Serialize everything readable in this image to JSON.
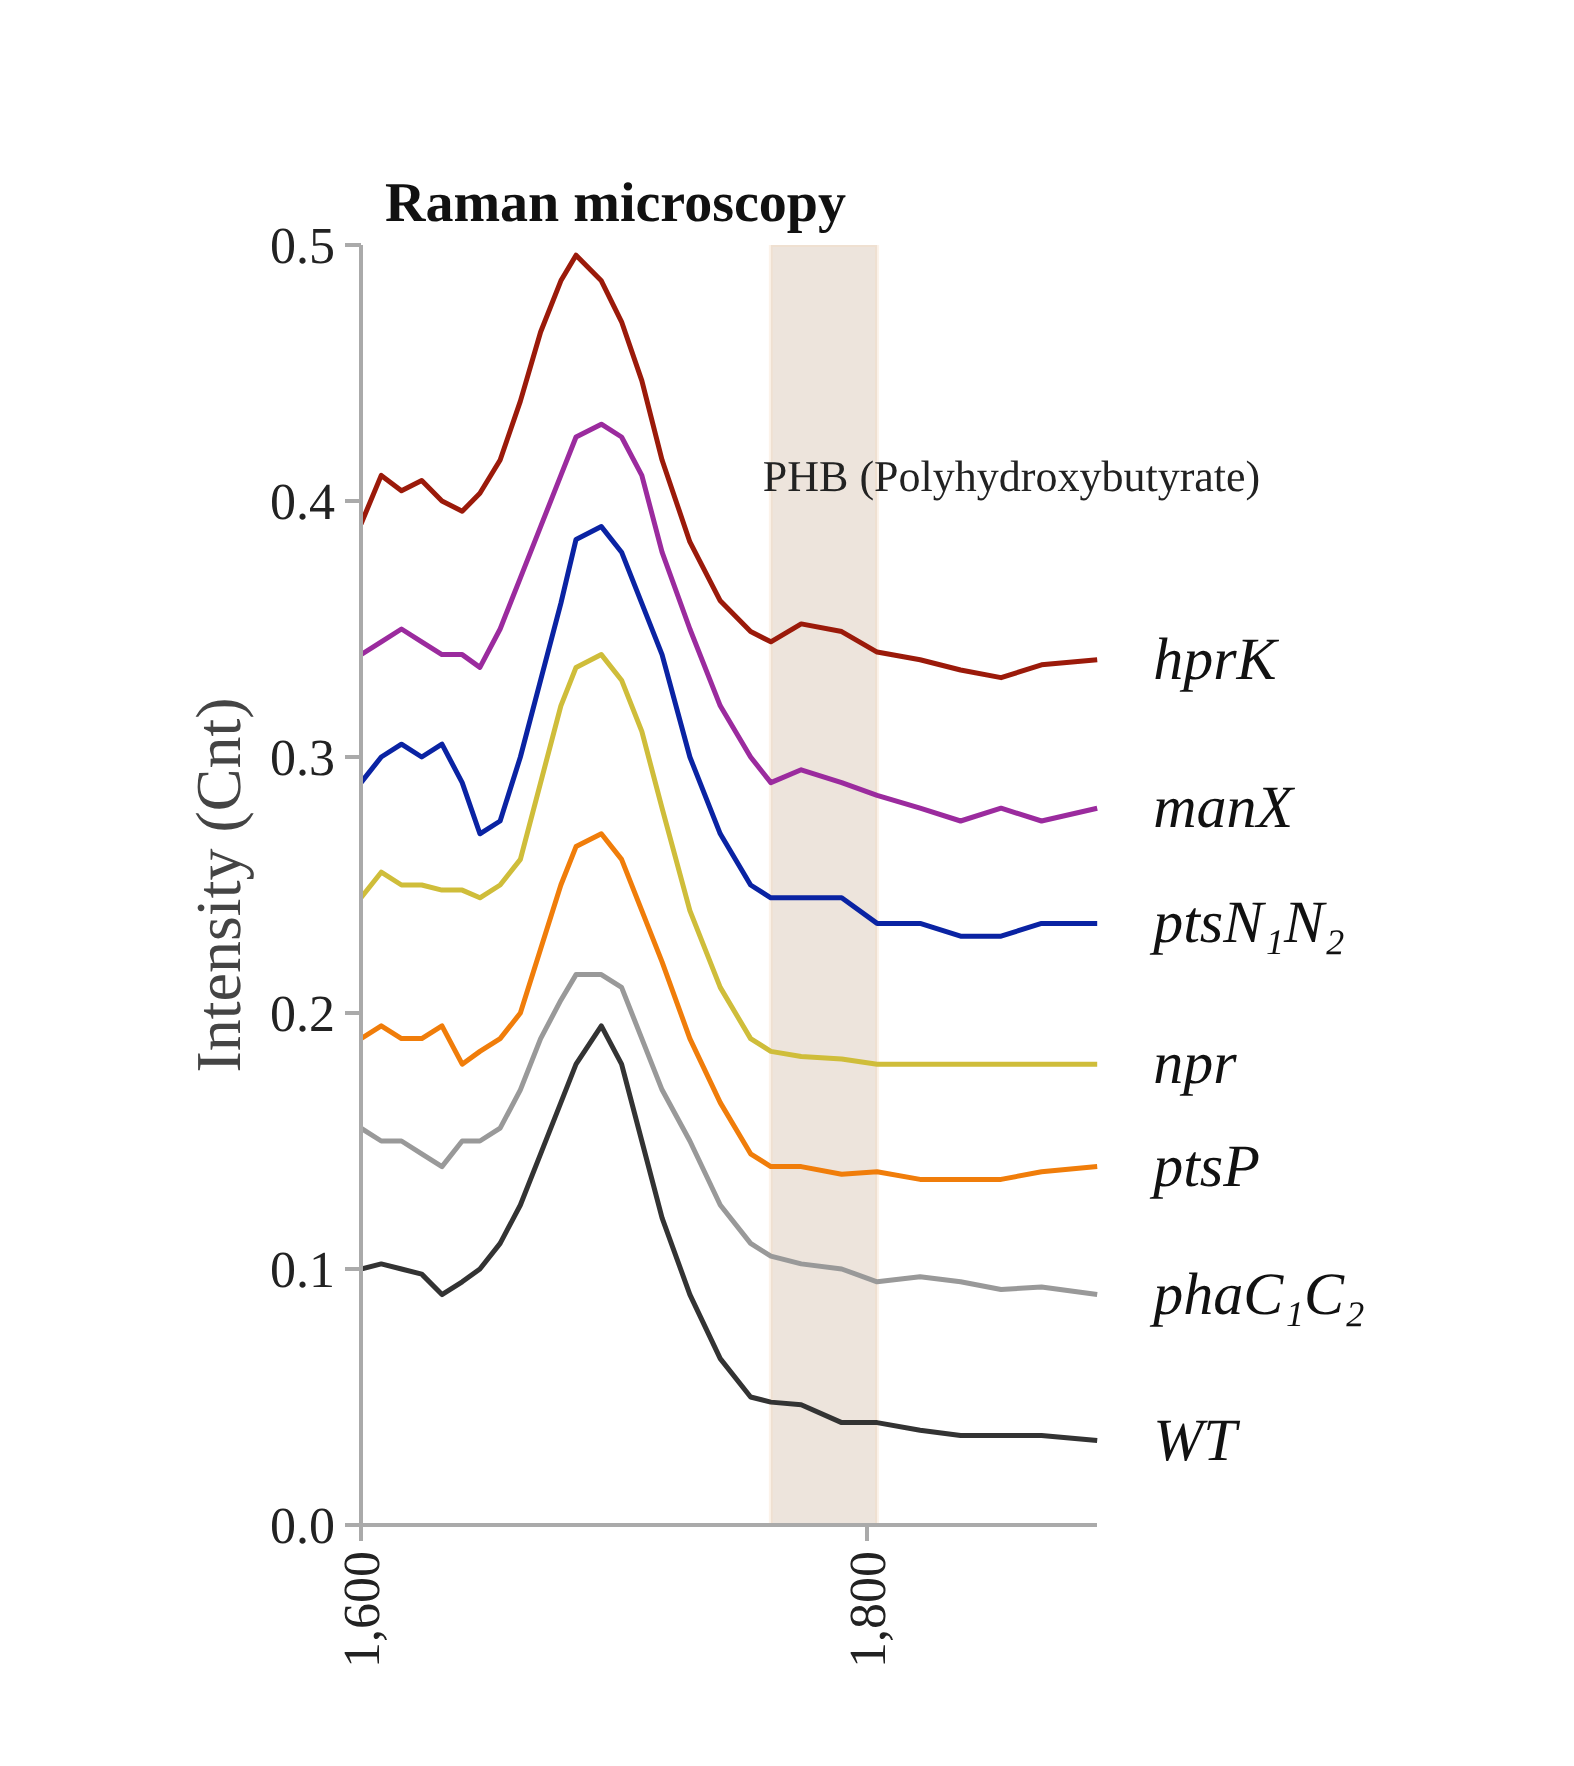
{
  "chart_data": {
    "type": "line",
    "title": "Raman microscopy",
    "ylabel": "Intensity (Cnt)",
    "x": [
      1600,
      1608,
      1616,
      1624,
      1632,
      1640,
      1647,
      1655,
      1663,
      1671,
      1679,
      1685,
      1695,
      1703,
      1711,
      1719,
      1730,
      1742,
      1754,
      1762,
      1774,
      1790,
      1804,
      1821,
      1837,
      1853,
      1869,
      1891
    ],
    "series": [
      {
        "name": "hprK",
        "color": "#9b1a0a",
        "values": [
          0.391,
          0.41,
          0.404,
          0.408,
          0.4,
          0.396,
          0.403,
          0.416,
          0.439,
          0.466,
          0.486,
          0.496,
          0.486,
          0.47,
          0.447,
          0.416,
          0.384,
          0.361,
          0.349,
          0.345,
          0.352,
          0.349,
          0.341,
          0.338,
          0.334,
          0.331,
          0.336,
          0.338
        ]
      },
      {
        "name": "manX",
        "color": "#9b2b9e",
        "values": [
          0.34,
          0.345,
          0.35,
          0.345,
          0.34,
          0.34,
          0.335,
          0.35,
          0.37,
          0.39,
          0.41,
          0.425,
          0.43,
          0.425,
          0.41,
          0.38,
          0.35,
          0.32,
          0.3,
          0.29,
          0.295,
          0.29,
          0.285,
          0.28,
          0.275,
          0.28,
          0.275,
          0.28
        ]
      },
      {
        "name": "ptsN₁N₂",
        "color": "#0a23a3",
        "values": [
          0.29,
          0.3,
          0.305,
          0.3,
          0.305,
          0.29,
          0.27,
          0.275,
          0.3,
          0.33,
          0.36,
          0.385,
          0.39,
          0.38,
          0.36,
          0.34,
          0.3,
          0.27,
          0.25,
          0.245,
          0.245,
          0.245,
          0.235,
          0.235,
          0.23,
          0.23,
          0.235,
          0.235
        ]
      },
      {
        "name": "npr",
        "color": "#cfbd3a",
        "values": [
          0.245,
          0.255,
          0.25,
          0.25,
          0.248,
          0.248,
          0.245,
          0.25,
          0.26,
          0.29,
          0.32,
          0.335,
          0.34,
          0.33,
          0.31,
          0.28,
          0.24,
          0.21,
          0.19,
          0.185,
          0.183,
          0.182,
          0.18,
          0.18,
          0.18,
          0.18,
          0.18,
          0.18
        ]
      },
      {
        "name": "ptsP",
        "color": "#f07d0a",
        "values": [
          0.19,
          0.195,
          0.19,
          0.19,
          0.195,
          0.18,
          0.185,
          0.19,
          0.2,
          0.225,
          0.25,
          0.265,
          0.27,
          0.26,
          0.24,
          0.22,
          0.19,
          0.165,
          0.145,
          0.14,
          0.14,
          0.137,
          0.138,
          0.135,
          0.135,
          0.135,
          0.138,
          0.14
        ]
      },
      {
        "name": "phaC₁C₂",
        "color": "#999999",
        "values": [
          0.155,
          0.15,
          0.15,
          0.145,
          0.14,
          0.15,
          0.15,
          0.155,
          0.17,
          0.19,
          0.205,
          0.215,
          0.215,
          0.21,
          0.19,
          0.17,
          0.15,
          0.125,
          0.11,
          0.105,
          0.102,
          0.1,
          0.095,
          0.097,
          0.095,
          0.092,
          0.093,
          0.09
        ]
      },
      {
        "name": "WT",
        "color": "#333333",
        "values": [
          0.1,
          0.102,
          0.1,
          0.098,
          0.09,
          0.095,
          0.1,
          0.11,
          0.125,
          0.145,
          0.165,
          0.18,
          0.195,
          0.18,
          0.15,
          0.12,
          0.09,
          0.065,
          0.05,
          0.048,
          0.047,
          0.04,
          0.04,
          0.037,
          0.035,
          0.035,
          0.035,
          0.033
        ]
      }
    ],
    "bands": [
      {
        "axis": "x",
        "from": 1762,
        "to": 1804,
        "label": "PHB (Polyhydroxybutyrate)",
        "color": "#e8ddd3"
      }
    ],
    "xlim": [
      1600,
      1891
    ],
    "xticks": [
      {
        "value": 1600,
        "label": "1,600"
      },
      {
        "value": 1800,
        "label": "1,800"
      }
    ],
    "ylim": [
      0,
      0.5
    ],
    "yticks": [
      {
        "value": 0,
        "label": "0.0"
      },
      {
        "value": 0.1,
        "label": "0.1"
      },
      {
        "value": 0.2,
        "label": "0.2"
      },
      {
        "value": 0.3,
        "label": "0.3"
      },
      {
        "value": 0.4,
        "label": "0.4"
      },
      {
        "value": 0.5,
        "label": "0.5"
      }
    ],
    "grid": false,
    "marker": "none",
    "line_style": "solid"
  }
}
